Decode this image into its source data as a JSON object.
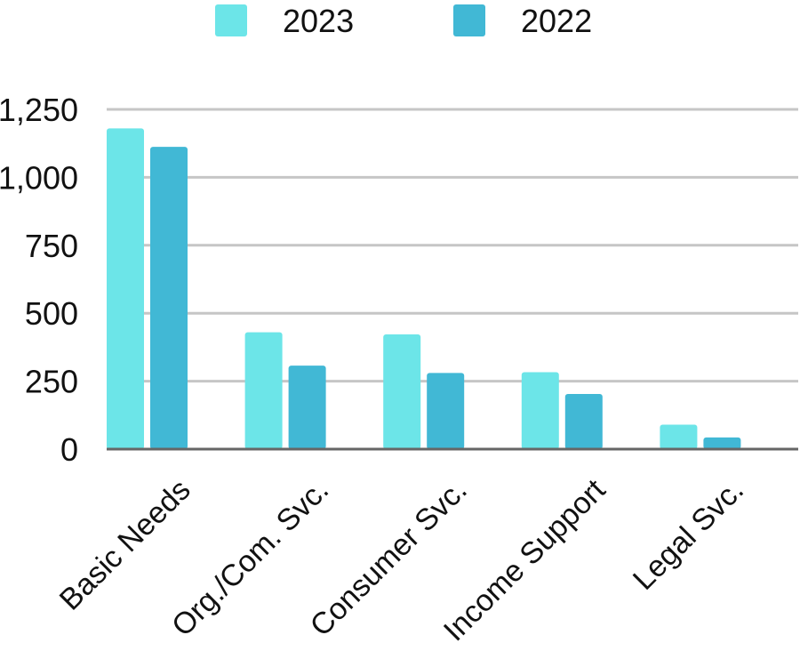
{
  "chart_data": {
    "type": "bar",
    "categories": [
      "Basic Needs",
      "Org./Com. Svc.",
      "Consumer Svc.",
      "Income Support",
      "Legal Svc."
    ],
    "series": [
      {
        "name": "2023",
        "color": "#6ce5e8",
        "values": [
          1180,
          430,
          422,
          283,
          90
        ]
      },
      {
        "name": "2022",
        "color": "#41b8d5",
        "values": [
          1112,
          307,
          280,
          203,
          43
        ]
      }
    ],
    "ylim": [
      0,
      1250
    ],
    "yticks": [
      0,
      250,
      500,
      750,
      1000,
      1250
    ],
    "ytick_labels": [
      "0",
      "250",
      "500",
      "750",
      "1,000",
      "1,250"
    ],
    "grid": true,
    "legend": "top-center",
    "title": "",
    "xlabel": "",
    "ylabel": ""
  }
}
